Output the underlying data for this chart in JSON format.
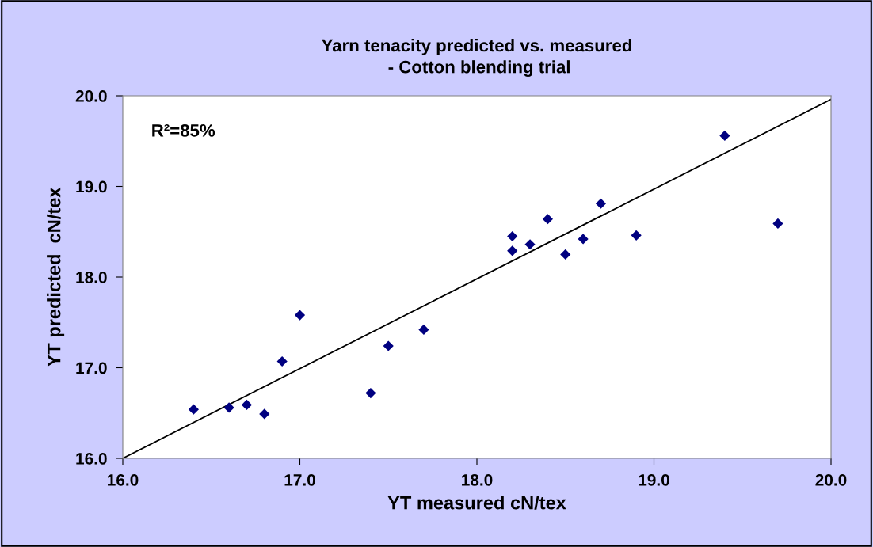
{
  "chart_data": {
    "type": "scatter",
    "title": "Yarn tenacity predicted vs. measured\n - Cotton blending trial",
    "xlabel": "YT measured cN/tex",
    "ylabel": "YT predicted  cN/tex",
    "annotations": [
      "R²=85%"
    ],
    "marker": "diamond",
    "grid": false,
    "legend": false,
    "xlim": [
      16,
      20
    ],
    "ylim": [
      16,
      20
    ],
    "xticks": [
      {
        "value": 16,
        "label": "16.0"
      },
      {
        "value": 17,
        "label": "17.0"
      },
      {
        "value": 18,
        "label": "18.0"
      },
      {
        "value": 19,
        "label": "19.0"
      },
      {
        "value": 20,
        "label": "20.0"
      }
    ],
    "yticks": [
      {
        "value": 16,
        "label": "16.0"
      },
      {
        "value": 17,
        "label": "17.0"
      },
      {
        "value": 18,
        "label": "18.0"
      },
      {
        "value": 19,
        "label": "19.0"
      },
      {
        "value": 20,
        "label": "20.0"
      }
    ],
    "series": [
      {
        "color": "#000080",
        "x": [
          16.4,
          16.6,
          16.7,
          16.8,
          16.9,
          17.0,
          17.4,
          17.5,
          17.7,
          18.2,
          18.2,
          18.3,
          18.4,
          18.5,
          18.6,
          18.7,
          18.9,
          19.4,
          19.7
        ],
        "values": [
          16.54,
          16.56,
          16.59,
          16.49,
          17.07,
          17.58,
          16.72,
          17.24,
          17.42,
          18.45,
          18.29,
          18.36,
          18.64,
          18.25,
          18.42,
          18.81,
          18.46,
          19.56,
          18.59
        ]
      },
      {
        "type": "line",
        "color": "#000000",
        "marker": "none",
        "line_style": "solid",
        "x": [
          16.0,
          20.0
        ],
        "values": [
          16.0,
          19.96
        ]
      }
    ]
  }
}
